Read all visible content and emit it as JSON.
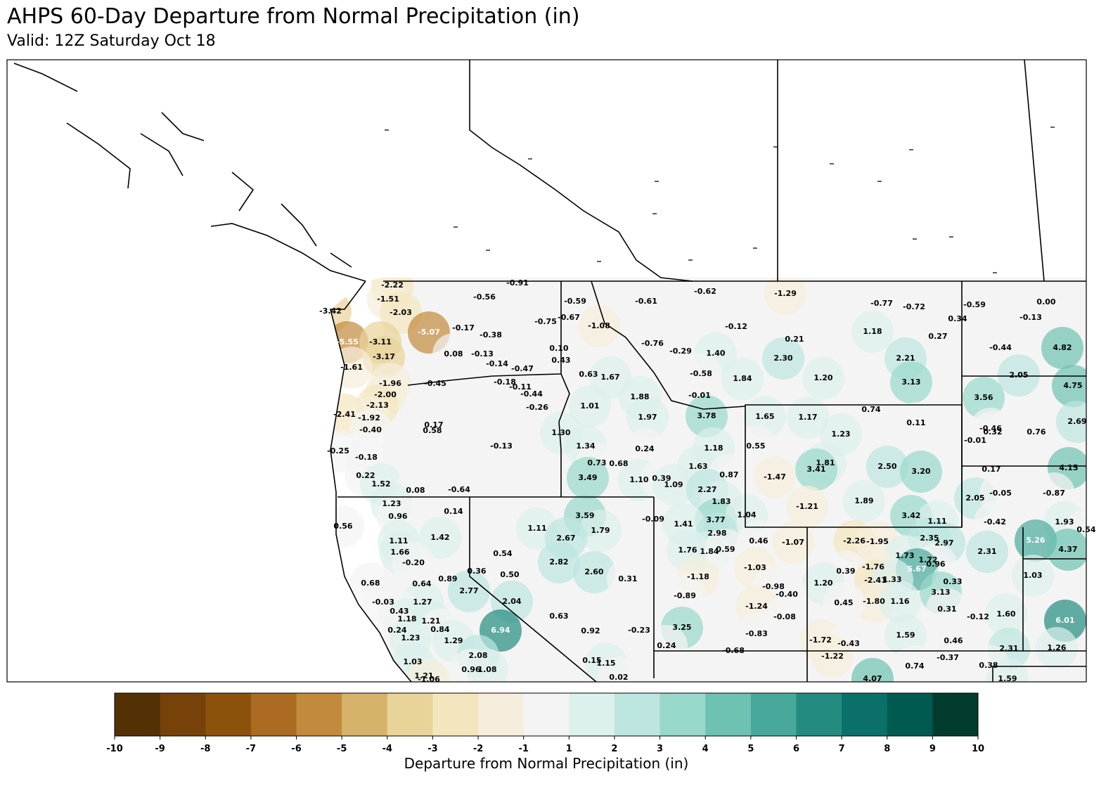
{
  "title": "AHPS 60-Day Departure from Normal Precipitation (in)",
  "subtitle": "Valid: 12Z Saturday Oct 18",
  "colorbar": {
    "label": "Departure from Normal Precipitation (in)",
    "ticks": [
      -10,
      -9,
      -8,
      -7,
      -6,
      -5,
      -4,
      -3,
      -2,
      -1,
      1,
      2,
      3,
      4,
      5,
      6,
      7,
      8,
      9,
      10
    ],
    "colors": [
      "#543005",
      "#764209",
      "#8c510a",
      "#ab6b22",
      "#c28a3c",
      "#d7b26a",
      "#e8d399",
      "#f3e5bd",
      "#f6eedc",
      "#f4f4f4",
      "#dcf0ed",
      "#bce6df",
      "#98d8cb",
      "#6ec2b2",
      "#48a99b",
      "#248b80",
      "#0b706a",
      "#005a4f",
      "#003b2e"
    ]
  },
  "stations": {
    "values": [
      -2.22,
      -0.91,
      -0.56,
      -0.59,
      -0.61,
      -0.62,
      -1.29,
      -0.77,
      -0.72,
      -0.59,
      0,
      -1.51,
      -3.42,
      -2.03,
      -0.67,
      -0.75,
      -1.08,
      0.34,
      -0.13,
      -0.17,
      -0.38,
      -5.07,
      -0.12,
      1.18,
      0.27,
      -5.55,
      -3.11,
      -0.76,
      0.21,
      -0.44,
      4.82,
      0.1,
      -0.29,
      1.4,
      0.08,
      -0.13,
      -3.17,
      0.43,
      2.3,
      2.21,
      -0.14,
      -0.47,
      -1.61,
      0.63,
      1.67,
      -0.58,
      1.84,
      1.2,
      2.05,
      -0.45,
      -1.96,
      -0.18,
      -0.11,
      3.13,
      4.75,
      -2,
      -0.44,
      1.88,
      -0.01,
      3.56,
      -2.13,
      -0.26,
      1.01,
      0.74,
      -2.41,
      -1.92,
      1.97,
      3.78,
      1.65,
      1.17,
      0.11,
      -0.46,
      0.17,
      0.58,
      -0.4,
      0.32,
      0.76,
      2.69,
      1.3,
      1.23,
      -0.01,
      -0.13,
      1.34,
      0.24,
      1.18,
      0.55,
      -0.25,
      -0.18,
      1.81,
      3.41,
      2.5,
      3.2,
      0.17,
      4.15,
      0.73,
      0.68,
      1.63,
      0.22,
      3.49,
      0.87,
      -1.47,
      1.1,
      0.39,
      1.52,
      1.09,
      2.27,
      0.08,
      -0.64,
      2.05,
      -0.05,
      -0.87,
      1.83,
      1.23,
      0.14,
      -1.21,
      1.89,
      0.96,
      3.59,
      -0.09,
      3.77,
      1.04,
      3.42,
      1.11,
      -0.42,
      1.93,
      0.56,
      1.41,
      0.54,
      1.11,
      1.79,
      2.98,
      1.42,
      2.67,
      -2.26,
      -1.95,
      2.35,
      1.11,
      0.46,
      -1.07,
      2.97,
      5.26,
      1.76,
      1.84,
      0.59,
      1.66,
      0.54,
      1.73,
      1.72,
      2.31,
      4.37,
      -0.2,
      2.82,
      -1.03,
      0.96,
      -1.76,
      0.39,
      5.67,
      2.6,
      0.5,
      -1.18,
      0.89,
      1.03,
      0.36,
      -0.98,
      -2.41,
      1.33,
      0.68,
      0.64,
      0.31,
      0.33,
      1.2,
      2.77,
      3.13,
      -0.4,
      -0.89,
      2.04,
      -1.8,
      1.16,
      0.45,
      -1.24,
      -0.03,
      1.27,
      0.31,
      0.43,
      -0.12,
      1.6,
      -0.08,
      0.63,
      1.18,
      1.21,
      6.01,
      0.84,
      3.25,
      0.24,
      6.94,
      0.92,
      -0.23,
      -0.83,
      1.59,
      1.23,
      1.29,
      -1.72,
      -0.43,
      0.46,
      0.24,
      2.31,
      1.26,
      -0.68,
      2.08,
      -1.22,
      -0.37,
      0.15,
      1.15,
      1.03,
      0.38,
      0.96,
      1.08,
      0.74,
      1.21,
      0.02,
      -1.06,
      4.07,
      1.59
    ],
    "value_labels": [
      "-2.22",
      "-0.91",
      "-0.56",
      "-0.59",
      "-0.61",
      "-0.62",
      "-1.29",
      "-0.77",
      "-0.72",
      "-0.59",
      "0.00",
      "-1.51",
      "-3.42",
      "-2.03",
      "-0.67",
      "-0.75",
      "-1.08",
      "0.34",
      "-0.13",
      "-0.17",
      "-0.38",
      "-5.07",
      "-0.12",
      "1.18",
      "0.27",
      "-5.55",
      "-3.11",
      "-0.76",
      "0.21",
      "-0.44",
      "4.82",
      "0.10",
      "-0.29",
      "1.40",
      "0.08",
      "-0.13",
      "-3.17",
      "0.43",
      "2.30",
      "2.21",
      "-0.14",
      "-0.47",
      "-1.61",
      "0.63",
      "1.67",
      "-0.58",
      "1.84",
      "1.20",
      "2.05",
      "-0.45",
      "-1.96",
      "-0.18",
      "-0.11",
      "3.13",
      "4.75",
      "-2.00",
      "-0.44",
      "1.88",
      "-0.01",
      "3.56",
      "-2.13",
      "-0.26",
      "1.01",
      "0.74",
      "-2.41",
      "-1.92",
      "1.97",
      "3.78",
      "1.65",
      "1.17",
      "0.11",
      "-0.46",
      "0.17",
      "0.58",
      "-0.40",
      "0.32",
      "0.76",
      "2.69",
      "1.30",
      "1.23",
      "-0.01",
      "-0.13",
      "1.34",
      "0.24",
      "1.18",
      "0.55",
      "-0.25",
      "-0.18",
      "1.81",
      "3.41",
      "2.50",
      "3.20",
      "0.17",
      "4.15",
      "0.73",
      "0.68",
      "1.63",
      "0.22",
      "3.49",
      "0.87",
      "-1.47",
      "1.10",
      "0.39",
      "1.52",
      "1.09",
      "2.27",
      "0.08",
      "-0.64",
      "2.05",
      "-0.05",
      "-0.87",
      "1.83",
      "1.23",
      "0.14",
      "-1.21",
      "1.89",
      "0.96",
      "3.59",
      "-0.09",
      "3.77",
      "1.04",
      "3.42",
      "1.11",
      "-0.42",
      "1.93",
      "0.56",
      "1.41",
      "0.54",
      "1.11",
      "1.79",
      "2.98",
      "1.42",
      "2.67",
      "-2.26",
      "-1.95",
      "2.35",
      "1.11",
      "0.46",
      "-1.07",
      "2.97",
      "5.26",
      "1.76",
      "1.84",
      "0.59",
      "1.66",
      "0.54",
      "1.73",
      "1.72",
      "2.31",
      "4.37",
      "-0.20",
      "2.82",
      "-1.03",
      "0.96",
      "-1.76",
      "0.39",
      "5.67",
      "2.60",
      "0.50",
      "-1.18",
      "0.89",
      "1.03",
      "0.36",
      "-0.98",
      "-2.41",
      "1.33",
      "0.68",
      "0.64",
      "0.31",
      "0.33",
      "1.20",
      "2.77",
      "3.13",
      "-0.40",
      "-0.89",
      "2.04",
      "-1.80",
      "1.16",
      "0.45",
      "-1.24",
      "-0.03",
      "1.27",
      "0.31",
      "0.43",
      "-0.12",
      "1.60",
      "-0.08",
      "0.63",
      "1.18",
      "1.21",
      "6.01",
      "0.84",
      "3.25",
      "0.24",
      "6.94",
      "0.92",
      "-0.23",
      "-0.83",
      "1.59",
      "1.23",
      "1.29",
      "-1.72",
      "-0.43",
      "0.46",
      "0.24",
      "2.31",
      "1.26",
      "-0.68",
      "2.08",
      "-1.22",
      "-0.37",
      "0.15",
      "1.15",
      "1.03",
      "0.38",
      "0.96",
      "1.08",
      "0.74",
      "1.21",
      "0.02",
      "-1.06",
      "4.07",
      "1.59"
    ]
  }
}
